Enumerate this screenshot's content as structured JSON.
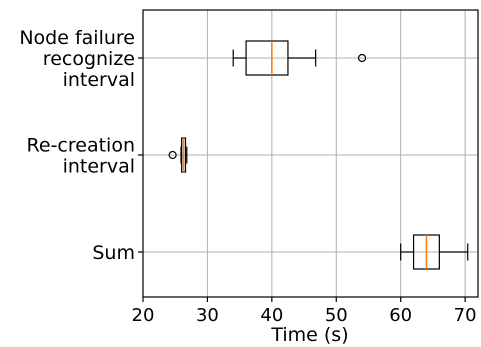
{
  "chart_data": {
    "type": "boxplot",
    "orientation": "horizontal",
    "title": "",
    "xlabel": "Time (s)",
    "ylabel": "",
    "xlim": [
      20,
      72
    ],
    "x_ticks": [
      "20",
      "30",
      "40",
      "50",
      "60",
      "70"
    ],
    "x_tick_values": [
      20,
      30,
      40,
      50,
      60,
      70
    ],
    "grid": true,
    "colors": {
      "median": "#ff7f0e",
      "box": "#000000",
      "grid": "#b0b0b0"
    },
    "boxes": [
      {
        "label": "Node failure recognize interval",
        "label_lines": [
          "Node failure",
          "recognize",
          "interval"
        ],
        "whisker_low": 34.0,
        "q1": 36.0,
        "median": 40.0,
        "q3": 42.5,
        "whisker_high": 46.8,
        "outliers": [
          54.0
        ]
      },
      {
        "label": "Re-creation interval",
        "label_lines": [
          "Re-creation",
          "interval"
        ],
        "whisker_low": 25.9,
        "q1": 26.0,
        "median": 26.3,
        "q3": 26.6,
        "whisker_high": 26.8,
        "outliers": [
          24.6
        ]
      },
      {
        "label": "Sum",
        "label_lines": [
          "Sum"
        ],
        "whisker_low": 60.0,
        "q1": 62.0,
        "median": 64.0,
        "q3": 66.0,
        "whisker_high": 70.4,
        "outliers": []
      }
    ]
  }
}
